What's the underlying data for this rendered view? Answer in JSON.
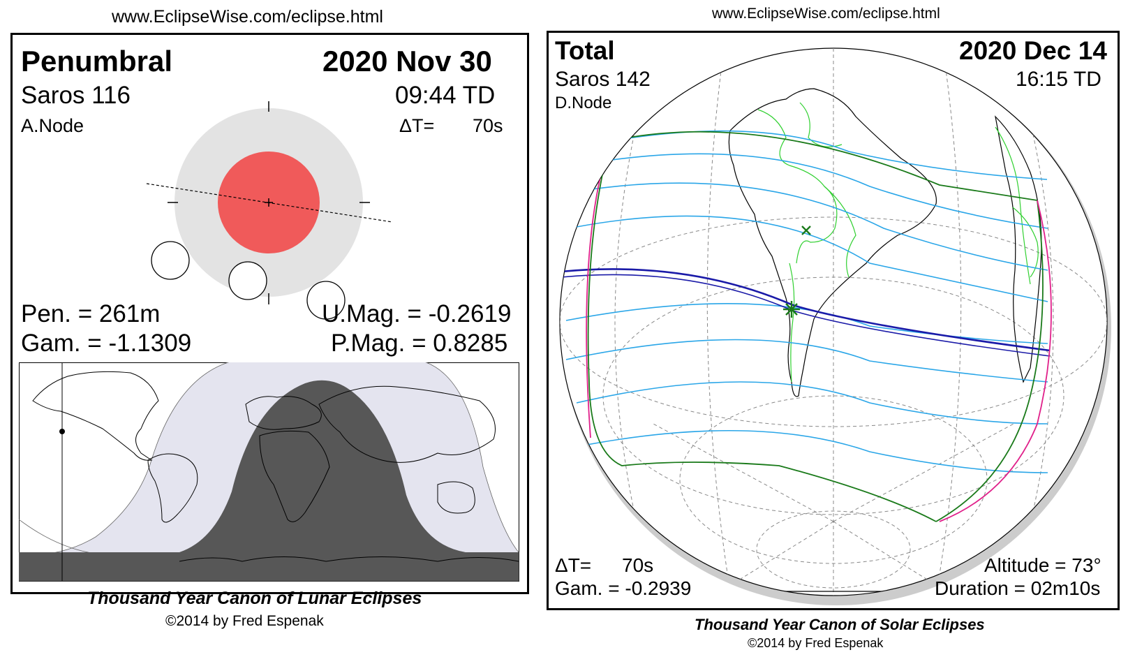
{
  "lunar": {
    "url": "www.EclipseWise.com/eclipse.html",
    "type": "Penumbral",
    "date": "2020 Nov 30",
    "saros": "Saros 116",
    "time": "09:44 TD",
    "node": "A.Node",
    "delta_t_label": "ΔT=",
    "delta_t_value": "70s",
    "pen": "Pen. = 261m",
    "gam": "Gam. = -1.1309",
    "umag": "U.Mag. = -0.2619",
    "pmag": "P.Mag. = 0.8285",
    "footer_title": "Thousand Year Canon of Lunar Eclipses",
    "footer_credit": "©2014 by Fred Espenak",
    "colors": {
      "penumbra": "#e3e3e3",
      "umbra": "#f05a5a",
      "night": "#575757",
      "twilight": "#e4e4ef"
    }
  },
  "solar": {
    "url": "www.EclipseWise.com/eclipse.html",
    "type": "Total",
    "date": "2020 Dec 14",
    "saros": "Saros 142",
    "time": "16:15 TD",
    "node": "D.Node",
    "delta_t_label": "ΔT=",
    "delta_t_value": "70s",
    "gam": "Gam. = -0.2939",
    "altitude": "Altitude = 73°",
    "duration": "Duration = 02m10s",
    "footer_title": "Thousand Year Canon of Solar Eclipses",
    "footer_credit": "©2014 by Fred Espenak",
    "colors": {
      "central_path": "#1a1aa8",
      "penumbral_lines": "#2aa6e8",
      "limits": "#1a7a1a",
      "rise_set": "#e0208a",
      "borders": "#30d030"
    }
  }
}
